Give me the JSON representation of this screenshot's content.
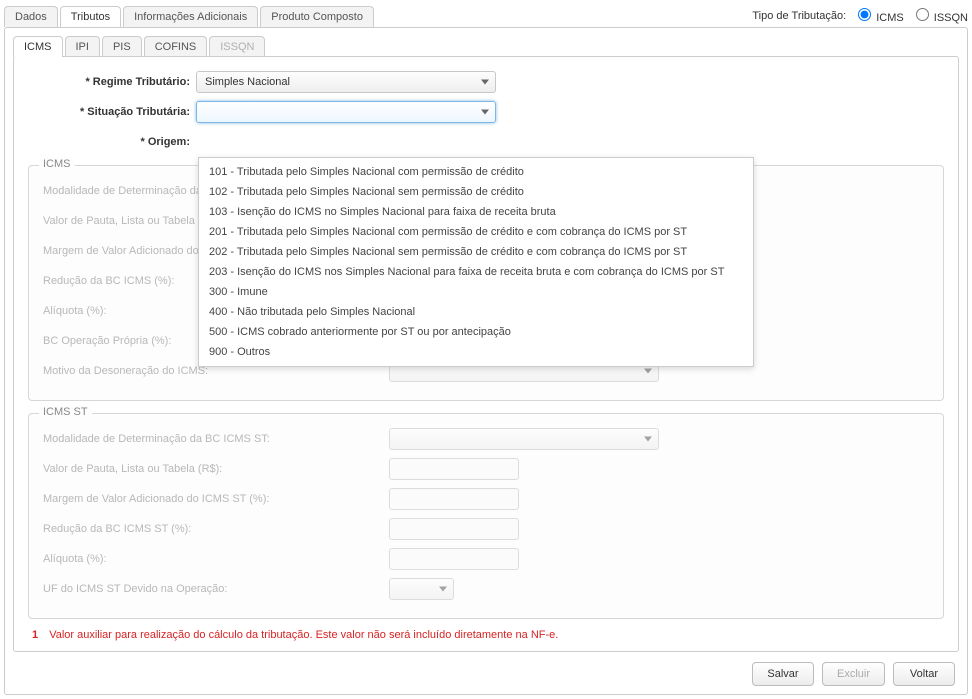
{
  "tipoTributacao": {
    "label": "Tipo de Tributação:",
    "icms": "ICMS",
    "issqn": "ISSQN",
    "selected": "ICMS"
  },
  "outerTabs": {
    "dados": "Dados",
    "tributos": "Tributos",
    "infoAdicionais": "Informações Adicionais",
    "produtoComposto": "Produto Composto"
  },
  "innerTabs": {
    "icms": "ICMS",
    "ipi": "IPI",
    "pis": "PIS",
    "cofins": "COFINS",
    "issqn": "ISSQN"
  },
  "form": {
    "regimeTributarioLabel": "* Regime Tributário:",
    "regimeTributarioValue": "Simples Nacional",
    "situacaoTributariaLabel": "* Situação Tributária:",
    "situacaoTributariaValue": "",
    "origemLabel": "* Origem:",
    "origemValue": ""
  },
  "situacaoOptions": [
    "101 - Tributada pelo Simples Nacional com permissão de crédito",
    "102 - Tributada pelo Simples Nacional sem permissão de crédito",
    "103 - Isenção do ICMS no Simples Nacional para faixa de receita bruta",
    "201 - Tributada pelo Simples Nacional com permissão de crédito e com cobrança do ICMS por ST",
    "202 - Tributada pelo Simples Nacional sem permissão de crédito e com cobrança do ICMS por ST",
    "203 - Isenção do ICMS nos Simples Nacional para faixa de receita bruta e com cobrança do ICMS por ST",
    "300 - Imune",
    "400 - Não tributada pelo Simples Nacional",
    "500 - ICMS cobrado anteriormente por ST ou por antecipação",
    "900 - Outros"
  ],
  "icmsGroup": {
    "legend": "ICMS",
    "rows": {
      "modalidade": "Modalidade de Determinação da BC ICMS:",
      "valorPauta": "Valor de Pauta, Lista ou Tabela (R$):",
      "margemValor": "Margem de Valor Adicionado do ICMS (%):",
      "reducaoBC": "Redução da BC ICMS (%):",
      "aliquota": "Alíquota (%):",
      "bcOperacao": "BC Operação Própria (%):",
      "motivoDesoneracao": "Motivo da Desoneração do ICMS:"
    }
  },
  "icmsStGroup": {
    "legend": "ICMS ST",
    "rows": {
      "modalidade": "Modalidade de Determinação da BC ICMS ST:",
      "valorPauta": "Valor de Pauta, Lista ou Tabela (R$):",
      "margemValor": "Margem de Valor Adicionado do ICMS ST (%):",
      "reducaoBC": "Redução da BC ICMS ST (%):",
      "aliquota": "Alíquota (%):",
      "ufDevido": "UF do ICMS ST Devido na Operação:"
    }
  },
  "footnote": {
    "num": "1",
    "text": "Valor auxiliar para realização do cálculo da tributação. Este valor não será incluído diretamente na NF-e."
  },
  "buttons": {
    "salvar": "Salvar",
    "excluir": "Excluir",
    "voltar": "Voltar"
  },
  "layout": {
    "dropdownLeft": 184,
    "dropdownTop": 100,
    "dropdownWidth": 556
  },
  "colors": {
    "error": "#d62323",
    "border": "#cccccc",
    "focus": "#7db7e8"
  }
}
